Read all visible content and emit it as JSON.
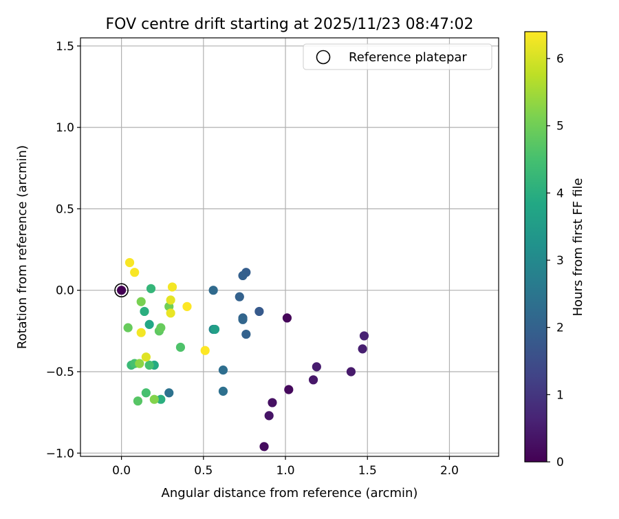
{
  "chart_data": {
    "type": "scatter",
    "title": "FOV centre drift starting at 2025/11/23 08:47:02",
    "xlabel": "Angular distance from reference (arcmin)",
    "ylabel": "Rotation from reference (arcmin)",
    "xlim": [
      -0.25,
      2.3
    ],
    "ylim": [
      -1.02,
      1.55
    ],
    "x_ticks": [
      0.0,
      0.5,
      1.0,
      1.5,
      2.0
    ],
    "x_tick_labels": [
      "0.0",
      "0.5",
      "1.0",
      "1.5",
      "2.0"
    ],
    "y_ticks": [
      -1.0,
      -0.5,
      0.0,
      0.5,
      1.0,
      1.5
    ],
    "y_tick_labels": [
      "−1.0",
      "−0.5",
      "0.0",
      "0.5",
      "1.0",
      "1.5"
    ],
    "grid": true,
    "legend": {
      "placement": "top-right",
      "entries": [
        "Reference platepar"
      ]
    },
    "reference_point": {
      "x": 0.0,
      "y": 0.0,
      "hours": 0.0
    },
    "colorbar": {
      "label": "Hours from first FF file",
      "colormap": "viridis",
      "range": [
        0,
        6.4
      ],
      "ticks": [
        0,
        1,
        2,
        3,
        4,
        5,
        6
      ],
      "tick_labels": [
        "0",
        "1",
        "2",
        "3",
        "4",
        "5",
        "6"
      ]
    },
    "points": [
      {
        "x": 0.0,
        "y": 0.0,
        "hours": 0.0
      },
      {
        "x": 1.01,
        "y": -0.17,
        "hours": 0.1
      },
      {
        "x": 1.02,
        "y": -0.61,
        "hours": 0.15
      },
      {
        "x": 0.92,
        "y": -0.69,
        "hours": 0.3
      },
      {
        "x": 0.9,
        "y": -0.77,
        "hours": 0.35
      },
      {
        "x": 0.87,
        "y": -0.96,
        "hours": 0.2
      },
      {
        "x": 1.17,
        "y": -0.55,
        "hours": 0.4
      },
      {
        "x": 1.19,
        "y": -0.47,
        "hours": 0.5
      },
      {
        "x": 1.4,
        "y": -0.5,
        "hours": 0.45
      },
      {
        "x": 1.47,
        "y": -0.36,
        "hours": 0.55
      },
      {
        "x": 1.48,
        "y": -0.28,
        "hours": 0.6
      },
      {
        "x": 0.84,
        "y": -0.13,
        "hours": 1.8
      },
      {
        "x": 0.76,
        "y": 0.11,
        "hours": 1.9
      },
      {
        "x": 0.74,
        "y": 0.09,
        "hours": 1.95
      },
      {
        "x": 0.72,
        "y": -0.04,
        "hours": 2.0
      },
      {
        "x": 0.74,
        "y": -0.17,
        "hours": 2.05
      },
      {
        "x": 0.74,
        "y": -0.18,
        "hours": 2.1
      },
      {
        "x": 0.76,
        "y": -0.27,
        "hours": 2.0
      },
      {
        "x": 0.56,
        "y": 0.0,
        "hours": 2.2
      },
      {
        "x": 0.62,
        "y": -0.49,
        "hours": 2.3
      },
      {
        "x": 0.62,
        "y": -0.62,
        "hours": 2.35
      },
      {
        "x": 0.29,
        "y": -0.63,
        "hours": 2.4
      },
      {
        "x": 0.56,
        "y": -0.24,
        "hours": 3.0
      },
      {
        "x": 0.57,
        "y": -0.24,
        "hours": 3.6
      },
      {
        "x": 0.17,
        "y": -0.21,
        "hours": 3.8
      },
      {
        "x": 0.2,
        "y": -0.46,
        "hours": 3.9
      },
      {
        "x": 0.14,
        "y": -0.13,
        "hours": 4.0
      },
      {
        "x": 0.24,
        "y": -0.67,
        "hours": 4.0
      },
      {
        "x": 0.18,
        "y": 0.01,
        "hours": 4.2
      },
      {
        "x": 0.06,
        "y": -0.46,
        "hours": 4.3
      },
      {
        "x": 0.08,
        "y": -0.45,
        "hours": 4.5
      },
      {
        "x": 0.15,
        "y": -0.63,
        "hours": 4.5
      },
      {
        "x": 0.17,
        "y": -0.46,
        "hours": 4.5
      },
      {
        "x": 0.36,
        "y": -0.35,
        "hours": 4.6
      },
      {
        "x": 0.1,
        "y": -0.68,
        "hours": 4.7
      },
      {
        "x": 0.23,
        "y": -0.25,
        "hours": 4.8
      },
      {
        "x": 0.04,
        "y": -0.23,
        "hours": 4.9
      },
      {
        "x": 0.24,
        "y": -0.23,
        "hours": 4.9
      },
      {
        "x": 0.29,
        "y": -0.1,
        "hours": 5.0
      },
      {
        "x": 0.12,
        "y": -0.07,
        "hours": 5.1
      },
      {
        "x": 0.2,
        "y": -0.67,
        "hours": 5.2
      },
      {
        "x": 0.11,
        "y": -0.45,
        "hours": 5.3
      },
      {
        "x": 0.15,
        "y": -0.41,
        "hours": 6.1
      },
      {
        "x": 0.3,
        "y": -0.06,
        "hours": 6.15
      },
      {
        "x": 0.3,
        "y": -0.14,
        "hours": 6.2
      },
      {
        "x": 0.12,
        "y": -0.26,
        "hours": 6.3
      },
      {
        "x": 0.31,
        "y": 0.02,
        "hours": 6.3
      },
      {
        "x": 0.05,
        "y": 0.17,
        "hours": 6.35
      },
      {
        "x": 0.08,
        "y": 0.11,
        "hours": 6.35
      },
      {
        "x": 0.4,
        "y": -0.1,
        "hours": 6.4
      },
      {
        "x": 0.51,
        "y": -0.37,
        "hours": 6.4
      }
    ]
  }
}
